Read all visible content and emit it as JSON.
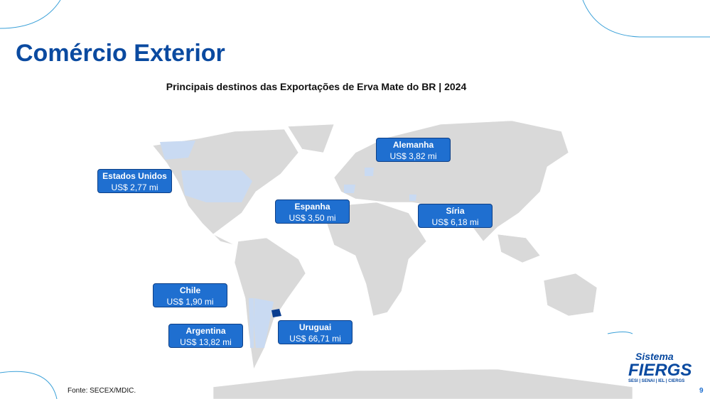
{
  "header": {
    "title": "Comércio Exterior",
    "subtitle": "Principais destinos das Exportações de Erva Mate do BR | 2024"
  },
  "callouts": [
    {
      "country": "Alemanha",
      "value": "US$ 3,82 mi"
    },
    {
      "country": "Estados Unidos",
      "value": "US$ 2,77 mi"
    },
    {
      "country": "Espanha",
      "value": "US$ 3,50 mi"
    },
    {
      "country": "Síria",
      "value": "US$ 6,18 mi"
    },
    {
      "country": "Chile",
      "value": "US$ 1,90 mi"
    },
    {
      "country": "Argentina",
      "value": "US$ 13,82 mi"
    },
    {
      "country": "Uruguai",
      "value": "US$ 66,71 mi"
    }
  ],
  "footer": {
    "source": "Fonte: SECEX/MDIC.",
    "page": "9"
  },
  "logo": {
    "top": "Sistema",
    "name": "FIERGS",
    "strip": "SESI | SENAI | IEL | CIERGS"
  }
}
